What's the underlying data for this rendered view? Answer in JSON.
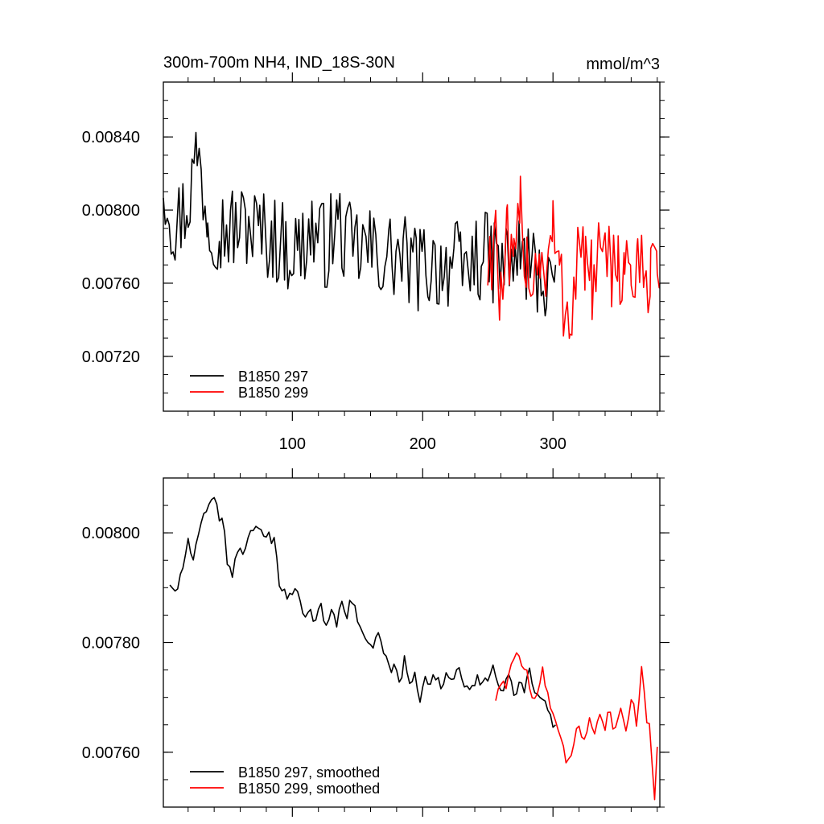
{
  "header": {
    "title": "300m-700m NH4, IND_18S-30N",
    "units": "mmol/m^3"
  },
  "colors": {
    "series_297": "#000000",
    "series_299": "#ff0000",
    "axis": "#000000",
    "background": "#ffffff"
  },
  "chart_data": [
    {
      "type": "line",
      "title": "300m-700m NH4, IND_18S-30N",
      "units": "mmol/m^3",
      "xlim": [
        1,
        382
      ],
      "ylim": [
        0.0069,
        0.0087
      ],
      "x_ticks": [
        100,
        200,
        300
      ],
      "x_tick_labels": [
        "100",
        "200",
        "300"
      ],
      "y_ticks": [
        0.0072,
        0.0076,
        0.008,
        0.0084
      ],
      "y_tick_labels": [
        "0.00720",
        "0.00760",
        "0.00800",
        "0.00840"
      ],
      "grid": false,
      "legend": "bottom-left",
      "series": [
        {
          "name": "B1850 297",
          "color": "#000000",
          "x": [
            1,
            10,
            20,
            27,
            35,
            45,
            55,
            65,
            75,
            85,
            95,
            105,
            115,
            125,
            135,
            145,
            155,
            165,
            175,
            185,
            195,
            205,
            215,
            225,
            229,
            235,
            245,
            255,
            265,
            275,
            285,
            295,
            302
          ],
          "y": [
            0.00818,
            0.0079,
            0.00805,
            0.00832,
            0.00798,
            0.0079,
            0.0079,
            0.00792,
            0.00788,
            0.00785,
            0.0078,
            0.00778,
            0.0079,
            0.0078,
            0.00792,
            0.00778,
            0.0078,
            0.00775,
            0.00775,
            0.00773,
            0.00768,
            0.0077,
            0.0077,
            0.00772,
            0.00765,
            0.0077,
            0.00775,
            0.00772,
            0.0077,
            0.00775,
            0.00768,
            0.0076,
            0.0077
          ]
        },
        {
          "name": "B1850 299",
          "color": "#ff0000",
          "x": [
            250,
            256,
            260,
            265,
            270,
            275,
            280,
            285,
            290,
            295,
            300,
            305,
            313,
            320,
            325,
            330,
            335,
            340,
            345,
            350,
            355,
            360,
            365,
            370,
            375,
            380,
            382
          ],
          "y": [
            0.0077,
            0.0079,
            0.00745,
            0.0078,
            0.0076,
            0.008,
            0.00775,
            0.00762,
            0.0078,
            0.0076,
            0.0079,
            0.0076,
            0.0074,
            0.00785,
            0.0077,
            0.0076,
            0.00775,
            0.00765,
            0.0077,
            0.00775,
            0.00765,
            0.0077,
            0.0076,
            0.00765,
            0.0077,
            0.00775,
            0.0076
          ]
        }
      ]
    },
    {
      "type": "line",
      "xlim": [
        1,
        382
      ],
      "ylim": [
        0.0075,
        0.0081
      ],
      "x_ticks": [
        100,
        200,
        300
      ],
      "y_ticks": [
        0.0076,
        0.0078,
        0.008
      ],
      "y_tick_labels": [
        "0.00760",
        "0.00780",
        "0.00800"
      ],
      "grid": false,
      "legend": "bottom-left",
      "series": [
        {
          "name": "B1850 297, smoothed",
          "color": "#000000",
          "x": [
            6,
            8,
            12,
            16,
            20,
            24,
            28,
            32,
            36,
            40,
            44,
            48,
            50,
            54,
            58,
            62,
            66,
            70,
            74,
            78,
            82,
            86,
            90,
            94,
            98,
            102,
            106,
            110,
            114,
            118,
            122,
            126,
            130,
            134,
            138,
            142,
            146,
            150,
            154,
            158,
            162,
            166,
            170,
            174,
            178,
            182,
            186,
            190,
            194,
            198,
            202,
            206,
            210,
            214,
            218,
            222,
            226,
            230,
            234,
            238,
            242,
            246,
            250,
            254,
            258,
            262,
            266,
            270,
            274,
            278,
            282,
            286,
            290,
            294,
            298,
            302
          ],
          "y": [
            0.00791,
            0.00789,
            0.0079,
            0.00794,
            0.00798,
            0.00794,
            0.008,
            0.00803,
            0.00806,
            0.00807,
            0.00803,
            0.008,
            0.00795,
            0.00793,
            0.00796,
            0.00797,
            0.00799,
            0.008,
            0.008,
            0.008,
            0.00799,
            0.00798,
            0.00791,
            0.0079,
            0.00788,
            0.0079,
            0.00787,
            0.00785,
            0.00786,
            0.00783,
            0.00788,
            0.00782,
            0.00787,
            0.00784,
            0.00788,
            0.00785,
            0.00788,
            0.00784,
            0.00782,
            0.0078,
            0.00778,
            0.00782,
            0.00778,
            0.00775,
            0.00776,
            0.00772,
            0.00777,
            0.00772,
            0.00774,
            0.0077,
            0.00775,
            0.00772,
            0.00774,
            0.00771,
            0.00775,
            0.00773,
            0.00776,
            0.00774,
            0.00772,
            0.00771,
            0.00773,
            0.00772,
            0.00774,
            0.00776,
            0.00773,
            0.00771,
            0.00774,
            0.0077,
            0.00772,
            0.00772,
            0.00775,
            0.0077,
            0.0077,
            0.00769,
            0.00766,
            0.00765
          ]
        },
        {
          "name": "B1850 299, smoothed",
          "color": "#ff0000",
          "x": [
            256,
            260,
            264,
            268,
            272,
            276,
            280,
            284,
            288,
            292,
            296,
            300,
            304,
            308,
            312,
            316,
            320,
            324,
            328,
            332,
            336,
            340,
            344,
            348,
            352,
            356,
            360,
            364,
            368,
            372,
            374,
            376,
            378,
            380
          ],
          "y": [
            0.0077,
            0.00773,
            0.00772,
            0.00776,
            0.00779,
            0.00777,
            0.00775,
            0.00769,
            0.00771,
            0.00775,
            0.0077,
            0.00766,
            0.00763,
            0.0076,
            0.00758,
            0.00761,
            0.00765,
            0.00762,
            0.00767,
            0.00764,
            0.00768,
            0.00765,
            0.00767,
            0.00764,
            0.00768,
            0.00765,
            0.00769,
            0.00766,
            0.00775,
            0.00766,
            0.00765,
            0.00758,
            0.00752,
            0.00761
          ]
        }
      ]
    }
  ]
}
